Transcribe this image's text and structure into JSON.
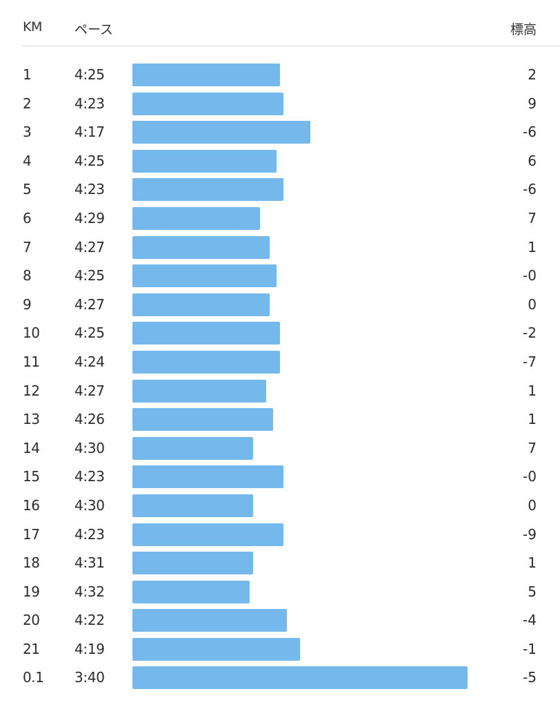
{
  "header": {
    "km_label": "KM",
    "pace_label": "ペース",
    "elevation_label": "標高"
  },
  "colors": {
    "bar": "#74b8ec",
    "divider": "#d9d9d9"
  },
  "splits": [
    {
      "km": "1",
      "pace": "4:25",
      "elevation": "2"
    },
    {
      "km": "2",
      "pace": "4:23",
      "elevation": "9"
    },
    {
      "km": "3",
      "pace": "4:17",
      "elevation": "-6"
    },
    {
      "km": "4",
      "pace": "4:25",
      "elevation": "6"
    },
    {
      "km": "5",
      "pace": "4:23",
      "elevation": "-6"
    },
    {
      "km": "6",
      "pace": "4:29",
      "elevation": "7"
    },
    {
      "km": "7",
      "pace": "4:27",
      "elevation": "1"
    },
    {
      "km": "8",
      "pace": "4:25",
      "elevation": "-0"
    },
    {
      "km": "9",
      "pace": "4:27",
      "elevation": "0"
    },
    {
      "km": "10",
      "pace": "4:25",
      "elevation": "-2"
    },
    {
      "km": "11",
      "pace": "4:24",
      "elevation": "-7"
    },
    {
      "km": "12",
      "pace": "4:27",
      "elevation": "1"
    },
    {
      "km": "13",
      "pace": "4:26",
      "elevation": "1"
    },
    {
      "km": "14",
      "pace": "4:30",
      "elevation": "7"
    },
    {
      "km": "15",
      "pace": "4:23",
      "elevation": "-0"
    },
    {
      "km": "16",
      "pace": "4:30",
      "elevation": "0"
    },
    {
      "km": "17",
      "pace": "4:23",
      "elevation": "-9"
    },
    {
      "km": "18",
      "pace": "4:31",
      "elevation": "1"
    },
    {
      "km": "19",
      "pace": "4:32",
      "elevation": "5"
    },
    {
      "km": "20",
      "pace": "4:22",
      "elevation": "-4"
    },
    {
      "km": "21",
      "pace": "4:19",
      "elevation": "-1"
    },
    {
      "km": "0.1",
      "pace": "3:40",
      "elevation": "-5"
    }
  ],
  "pace_bar_fraction": [
    0.44,
    0.45,
    0.53,
    0.43,
    0.45,
    0.38,
    0.41,
    0.43,
    0.41,
    0.44,
    0.44,
    0.4,
    0.42,
    0.36,
    0.45,
    0.36,
    0.45,
    0.36,
    0.35,
    0.46,
    0.5,
    1.0
  ]
}
